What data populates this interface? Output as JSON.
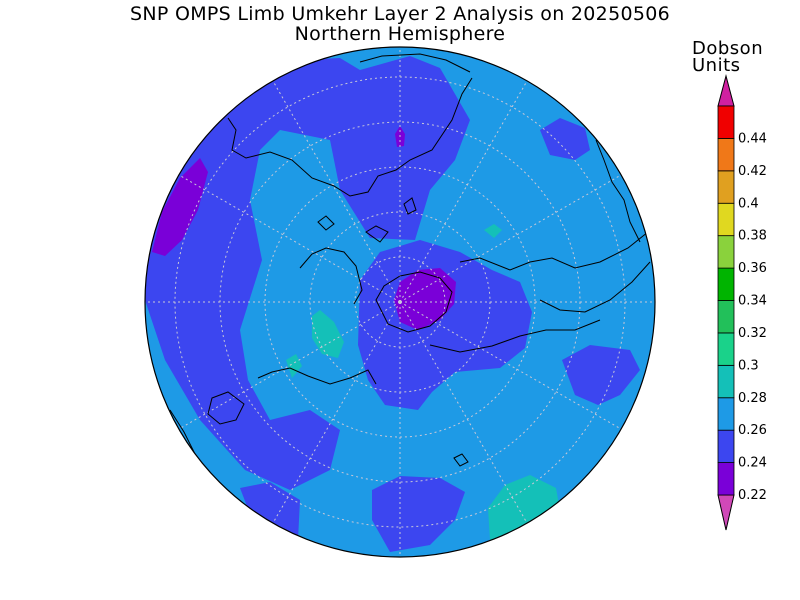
{
  "title": "SNP OMPS Limb Umkehr Layer 2 Analysis on 20250506",
  "subtitle": "Northern Hemisphere",
  "units": "Dobson Units",
  "units_line1": "Dobson",
  "units_line2": "Units",
  "colorbar": {
    "levels": [
      "0.22",
      "0.24",
      "0.26",
      "0.28",
      "0.3",
      "0.32",
      "0.34",
      "0.36",
      "0.38",
      "0.4",
      "0.42",
      "0.44"
    ],
    "colors": [
      "#7a00d8",
      "#3c46f0",
      "#1e9ae6",
      "#14c0b8",
      "#1ad28a",
      "#22c05a",
      "#00b400",
      "#8ad23c",
      "#e0d820",
      "#e0a020",
      "#f07818",
      "#f00000"
    ],
    "under_color": "#d048b8",
    "over_color": "#d020a0"
  }
}
